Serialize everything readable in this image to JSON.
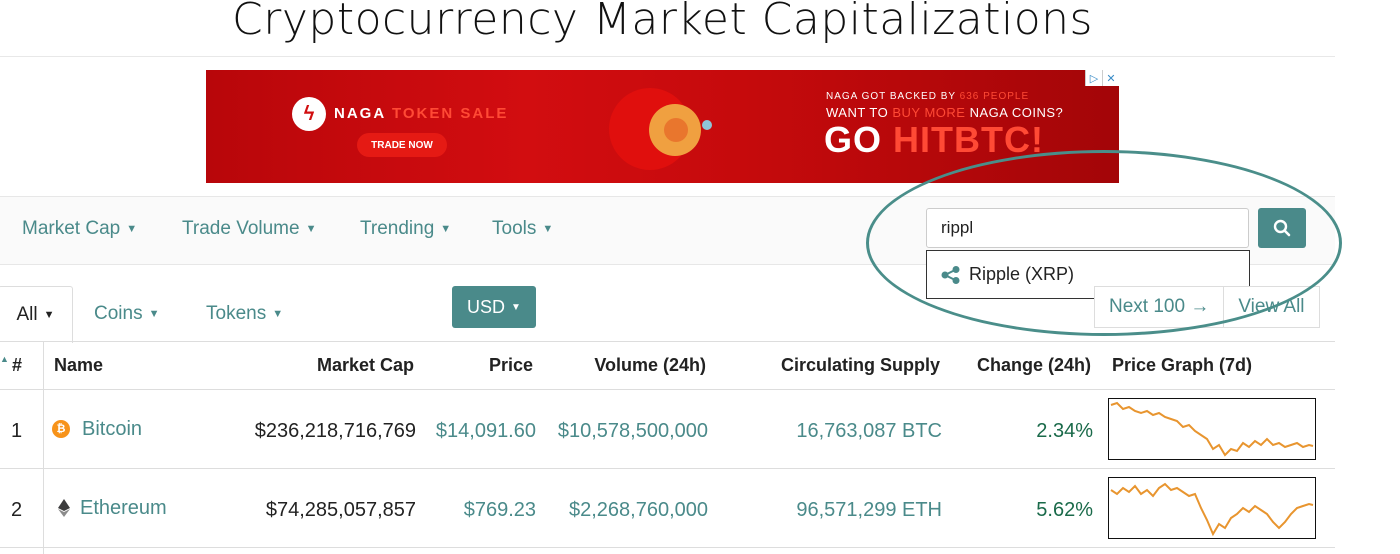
{
  "page_title": "Cryptocurrency Market Capitalizations",
  "ad": {
    "brand": "NAGA",
    "token_sale": "TOKEN SALE",
    "trade_now": "TRADE NOW",
    "line1_prefix": "NAGA GOT BACKED BY",
    "line1_highlight": "636 PEOPLE",
    "line2_prefix": "WANT TO",
    "line2_highlight": "BUY MORE",
    "line2_suffix": "NAGA COINS?",
    "line3_prefix": "GO",
    "line3_highlight": "HITBTC!",
    "adchoices_icon": "▷",
    "close_icon": "✕"
  },
  "nav": {
    "items": [
      "Market Cap",
      "Trade Volume",
      "Trending",
      "Tools"
    ],
    "search_value": "rippl",
    "search_icon": "search-icon"
  },
  "search_dropdown": {
    "label": "Ripple (XRP)",
    "icon": "ripple-icon"
  },
  "filters": {
    "all": "All",
    "coins": "Coins",
    "tokens": "Tokens",
    "currency": "USD",
    "next": "Next 100 →",
    "view_all": "View All"
  },
  "table": {
    "headers": [
      "#",
      "Name",
      "Market Cap",
      "Price",
      "Volume (24h)",
      "Circulating Supply",
      "Change (24h)",
      "Price Graph (7d)"
    ],
    "rows": [
      {
        "rank": "1",
        "name": "Bitcoin",
        "market_cap": "$236,218,716,769",
        "price": "$14,091.60",
        "volume": "$10,578,500,000",
        "supply": "16,763,087 BTC",
        "change": "2.34%",
        "icon_color": "#f7931a"
      },
      {
        "rank": "2",
        "name": "Ethereum",
        "market_cap": "$74,285,057,857",
        "price": "$769.23",
        "volume": "$2,268,760,000",
        "supply": "96,571,299 ETH",
        "change": "5.62%",
        "icon_color": "#3c3c3d"
      }
    ]
  },
  "colors": {
    "accent": "#4a8a8a",
    "ad_red": "#c50a0c",
    "sparkline": "#e8952f"
  }
}
